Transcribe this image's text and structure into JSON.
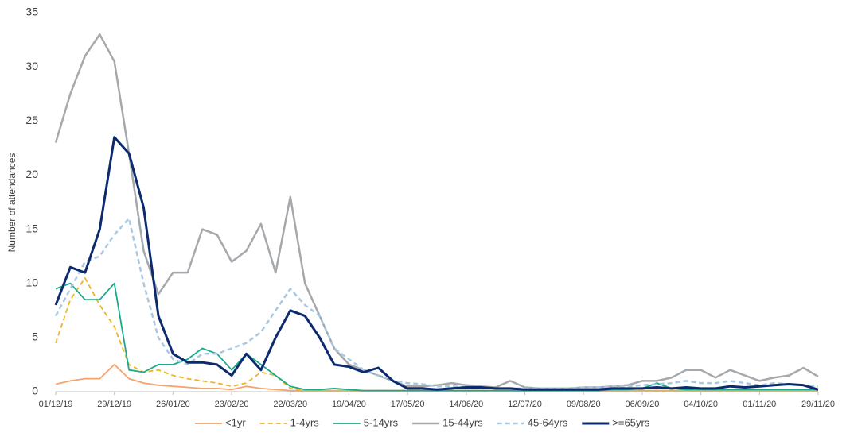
{
  "chart_data": {
    "type": "line",
    "y_label": "Number of attendances",
    "x": [
      "01/12/19",
      "08/12/19",
      "15/12/19",
      "22/12/19",
      "29/12/19",
      "05/01/20",
      "12/01/20",
      "19/01/20",
      "26/01/20",
      "02/02/20",
      "09/02/20",
      "16/02/20",
      "23/02/20",
      "01/03/20",
      "08/03/20",
      "15/03/20",
      "22/03/20",
      "29/03/20",
      "05/04/20",
      "12/04/20",
      "19/04/20",
      "26/04/20",
      "03/05/20",
      "10/05/20",
      "17/05/20",
      "24/05/20",
      "31/05/20",
      "07/06/20",
      "14/06/20",
      "21/06/20",
      "28/06/20",
      "05/07/20",
      "12/07/20",
      "19/07/20",
      "26/07/20",
      "02/08/20",
      "09/08/20",
      "16/08/20",
      "23/08/20",
      "30/08/20",
      "06/09/20",
      "13/09/20",
      "20/09/20",
      "27/09/20",
      "04/10/20",
      "11/10/20",
      "18/10/20",
      "25/10/20",
      "01/11/20",
      "08/11/20",
      "15/11/20",
      "22/11/20",
      "29/11/20"
    ],
    "xlim": [
      "01/12/19",
      "29/11/20"
    ],
    "xticks": [
      "01/12/19",
      "29/12/19",
      "26/01/20",
      "23/02/20",
      "22/03/20",
      "19/04/20",
      "17/05/20",
      "14/06/20",
      "12/07/20",
      "09/08/20",
      "06/09/20",
      "04/10/20",
      "01/11/20",
      "29/11/20"
    ],
    "ylim": [
      0,
      35
    ],
    "yticks": [
      0,
      5,
      10,
      15,
      20,
      25,
      30,
      35
    ],
    "legend": "bottom",
    "series": [
      {
        "name": "<1yr",
        "color": "#f4a46e",
        "dash": false,
        "width": 1.8,
        "values": [
          0.7,
          1,
          1.2,
          1.2,
          2.5,
          1.2,
          0.8,
          0.6,
          0.5,
          0.4,
          0.3,
          0.3,
          0.2,
          0.5,
          0.3,
          0.2,
          0.1,
          0.1,
          0.1,
          0.1,
          0.1,
          0.1,
          0.1,
          0.1,
          0.1,
          0.1,
          0.1,
          0.1,
          0.1,
          0.1,
          0.1,
          0.1,
          0.1,
          0.1,
          0.1,
          0.1,
          0.1,
          0.1,
          0.1,
          0.1,
          0.1,
          0.1,
          0.1,
          0.1,
          0.1,
          0.1,
          0.1,
          0.1,
          0.1,
          0.1,
          0.1,
          0.1,
          0.1
        ]
      },
      {
        "name": "1-4yrs",
        "color": "#f0b41e",
        "dash": true,
        "width": 1.8,
        "values": [
          4.5,
          8.5,
          10.5,
          8,
          6,
          2.5,
          1.8,
          2,
          1.5,
          1.2,
          1,
          0.8,
          0.5,
          0.8,
          1.8,
          1.5,
          0.3,
          0.1,
          0.1,
          0.1,
          0.1,
          0.1,
          0.1,
          0.1,
          0.1,
          0.1,
          0.1,
          0.1,
          0.1,
          0.1,
          0.1,
          0.1,
          0.1,
          0.1,
          0.1,
          0.1,
          0.1,
          0.1,
          0.1,
          0.1,
          0.1,
          0.1,
          0.1,
          0.1,
          0.1,
          0.1,
          0.1,
          0.1,
          0.1,
          0.1,
          0.1,
          0.1,
          0.1
        ]
      },
      {
        "name": "5-14yrs",
        "color": "#1aa98a",
        "dash": false,
        "width": 1.8,
        "values": [
          9.5,
          10,
          8.5,
          8.5,
          10,
          2,
          1.8,
          2.5,
          2.5,
          3,
          4,
          3.5,
          2,
          3.5,
          2.5,
          1.5,
          0.5,
          0.2,
          0.2,
          0.3,
          0.2,
          0.1,
          0.1,
          0.1,
          0.1,
          0.1,
          0.1,
          0.1,
          0.1,
          0.1,
          0.1,
          0.1,
          0.1,
          0.1,
          0.1,
          0.1,
          0.1,
          0.1,
          0.2,
          0.2,
          0.3,
          0.8,
          0.3,
          0.2,
          0.2,
          0.2,
          0.2,
          0.2,
          0.2,
          0.2,
          0.2,
          0.2,
          0.2
        ]
      },
      {
        "name": "15-44yrs",
        "color": "#a5a8ac",
        "dash": false,
        "width": 2.5,
        "values": [
          23,
          27.5,
          31,
          33,
          30.5,
          22,
          13,
          9,
          11,
          11,
          15,
          14.5,
          12,
          13,
          15.5,
          11,
          18,
          10,
          7,
          4,
          2.5,
          2,
          1.5,
          1,
          0.5,
          0.5,
          0.6,
          0.8,
          0.6,
          0.5,
          0.4,
          1,
          0.4,
          0.3,
          0.3,
          0.3,
          0.4,
          0.4,
          0.5,
          0.6,
          1,
          1,
          1.3,
          2,
          2,
          1.3,
          2,
          1.5,
          1,
          1.3,
          1.5,
          2.2,
          1.4
        ]
      },
      {
        "name": "45-64yrs",
        "color": "#a9c9e1",
        "dash": true,
        "width": 2.5,
        "values": [
          7,
          9.5,
          12,
          12.5,
          14.5,
          16,
          10,
          5,
          3,
          2.5,
          3.5,
          3.5,
          4,
          4.5,
          5.5,
          7.5,
          9.5,
          8,
          7,
          4,
          3,
          2,
          1.5,
          1,
          0.8,
          0.7,
          0.5,
          0.5,
          0.4,
          0.4,
          0.3,
          0.3,
          0.3,
          0.3,
          0.3,
          0.3,
          0.4,
          0.4,
          0.5,
          0.5,
          0.6,
          0.7,
          0.8,
          1,
          0.8,
          0.8,
          1,
          0.8,
          0.6,
          0.8,
          0.7,
          0.6,
          0.5
        ]
      },
      {
        "name": ">=65yrs",
        "color": "#0c2a6e",
        "dash": false,
        "width": 3,
        "values": [
          8,
          11.5,
          11,
          15,
          23.5,
          22,
          17,
          7,
          3.5,
          2.7,
          2.7,
          2.5,
          1.5,
          3.5,
          2,
          5,
          7.5,
          7,
          5,
          2.5,
          2.3,
          1.8,
          2.2,
          1,
          0.3,
          0.3,
          0.2,
          0.3,
          0.4,
          0.4,
          0.3,
          0.3,
          0.2,
          0.2,
          0.2,
          0.2,
          0.2,
          0.2,
          0.3,
          0.3,
          0.3,
          0.4,
          0.3,
          0.4,
          0.3,
          0.3,
          0.5,
          0.4,
          0.5,
          0.6,
          0.7,
          0.6,
          0.2
        ]
      }
    ]
  }
}
